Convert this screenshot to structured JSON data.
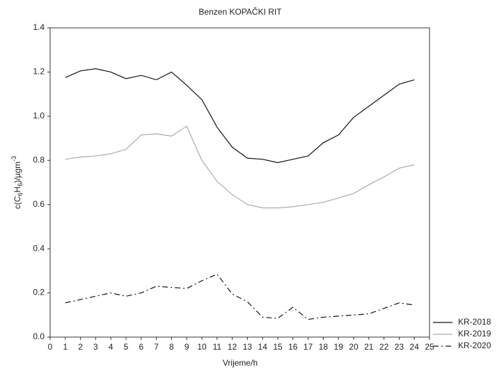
{
  "chart_data": {
    "type": "line",
    "title": "Benzen KOPAČKI RIT",
    "x_label": "Vrijeme/h",
    "y_label": [
      "c(C",
      "6",
      "H",
      "6",
      ")/µgm",
      "-3"
    ],
    "x": [
      1,
      2,
      3,
      4,
      5,
      6,
      7,
      8,
      9,
      10,
      11,
      12,
      13,
      14,
      15,
      16,
      17,
      18,
      19,
      20,
      21,
      22,
      23,
      24
    ],
    "series": [
      {
        "name": "KR-2018",
        "color": "#111111",
        "line_style": "solid",
        "values": [
          1.175,
          1.205,
          1.215,
          1.2,
          1.17,
          1.185,
          1.165,
          1.2,
          1.14,
          1.075,
          0.95,
          0.86,
          0.81,
          0.805,
          0.79,
          0.805,
          0.82,
          0.88,
          0.915,
          0.995,
          1.045,
          1.095,
          1.145,
          1.165
        ]
      },
      {
        "name": "KR-2019",
        "color": "#aaaaaa",
        "line_style": "solid",
        "values": [
          0.805,
          0.815,
          0.82,
          0.83,
          0.85,
          0.915,
          0.92,
          0.91,
          0.955,
          0.8,
          0.705,
          0.645,
          0.6,
          0.585,
          0.585,
          0.59,
          0.6,
          0.61,
          0.63,
          0.65,
          0.69,
          0.725,
          0.765,
          0.78
        ]
      },
      {
        "name": "KR-2020",
        "color": "#111111",
        "line_style": "dashed",
        "values": [
          0.155,
          0.17,
          0.185,
          0.2,
          0.185,
          0.2,
          0.23,
          0.225,
          0.22,
          0.255,
          0.285,
          0.195,
          0.16,
          0.09,
          0.085,
          0.135,
          0.08,
          0.09,
          0.095,
          0.1,
          0.105,
          0.13,
          0.155,
          0.145
        ]
      }
    ],
    "xlim": [
      0,
      25
    ],
    "xticks": [
      0,
      1,
      2,
      3,
      4,
      5,
      6,
      7,
      8,
      9,
      10,
      11,
      12,
      13,
      14,
      15,
      16,
      17,
      18,
      19,
      20,
      21,
      22,
      23,
      24,
      25
    ],
    "ylim": [
      0,
      1.4
    ],
    "yticks": [
      {
        "value": 0,
        "label": "0.0"
      },
      0.2,
      0.4,
      0.6,
      0.8,
      {
        "value": 1,
        "label": "1.0"
      },
      1.2,
      1.4
    ],
    "grid": false,
    "legend": "bottom-right"
  }
}
